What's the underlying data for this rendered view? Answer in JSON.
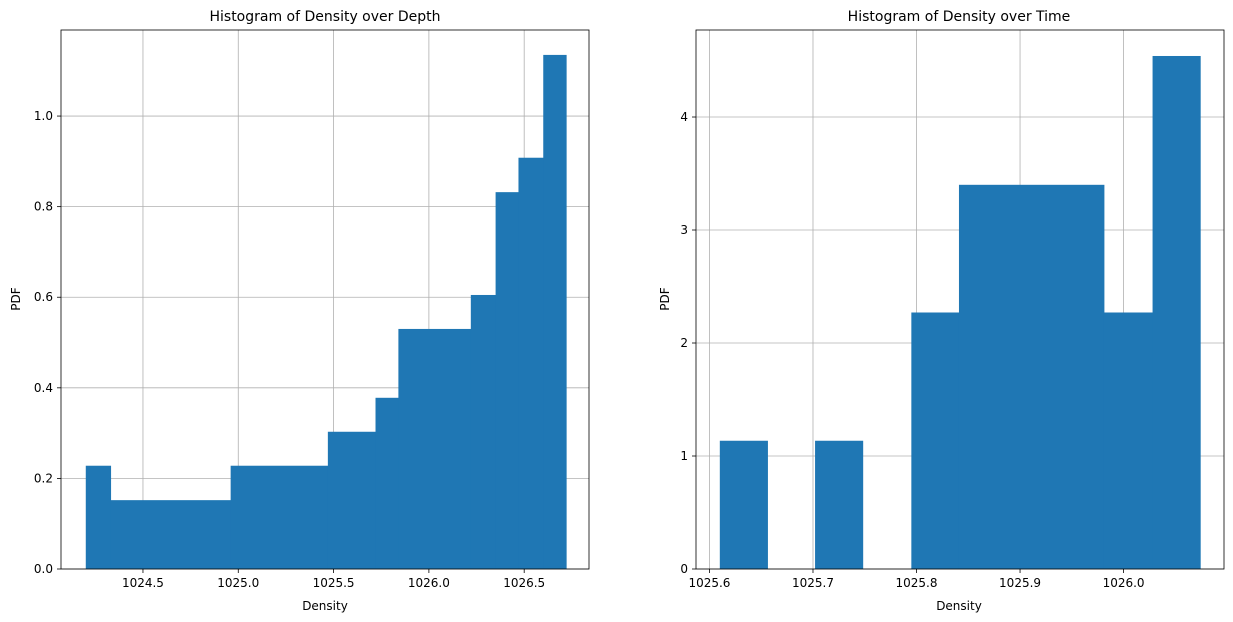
{
  "chart_data": [
    {
      "type": "bar",
      "title": "Histogram of Density over Depth",
      "xlabel": "Density",
      "ylabel": "PDF",
      "xlim": [
        1024.07,
        1026.84
      ],
      "ylim": [
        0,
        1.19
      ],
      "xticks": [
        1024.5,
        1025.0,
        1025.5,
        1026.0,
        1026.5
      ],
      "xtick_labels": [
        "1024.5",
        "1025.0",
        "1025.5",
        "1026.0",
        "1026.5"
      ],
      "yticks": [
        0.0,
        0.2,
        0.4,
        0.6,
        0.8,
        1.0
      ],
      "ytick_labels": [
        "0.0",
        "0.2",
        "0.4",
        "0.6",
        "0.8",
        "1.0"
      ],
      "grid": true,
      "bins": [
        {
          "x0": 1024.2,
          "x1": 1024.33,
          "value": 0.228
        },
        {
          "x0": 1024.33,
          "x1": 1024.96,
          "value": 0.152
        },
        {
          "x0": 1024.96,
          "x1": 1025.47,
          "value": 0.228
        },
        {
          "x0": 1025.47,
          "x1": 1025.72,
          "value": 0.303
        },
        {
          "x0": 1025.72,
          "x1": 1025.84,
          "value": 0.378
        },
        {
          "x0": 1025.84,
          "x1": 1026.22,
          "value": 0.53
        },
        {
          "x0": 1026.22,
          "x1": 1026.35,
          "value": 0.605
        },
        {
          "x0": 1026.35,
          "x1": 1026.47,
          "value": 0.832
        },
        {
          "x0": 1026.47,
          "x1": 1026.6,
          "value": 0.908
        },
        {
          "x0": 1026.6,
          "x1": 1026.72,
          "value": 1.135
        }
      ]
    },
    {
      "type": "bar",
      "title": "Histogram of Density over Time",
      "xlabel": "Density",
      "ylabel": "PDF",
      "xlim": [
        1025.587,
        1026.097
      ],
      "ylim": [
        0,
        4.77
      ],
      "xticks": [
        1025.6,
        1025.7,
        1025.8,
        1025.9,
        1026.0
      ],
      "xtick_labels": [
        "1025.6",
        "1025.7",
        "1025.8",
        "1025.9",
        "1026.0"
      ],
      "yticks": [
        0,
        1,
        2,
        3,
        4
      ],
      "ytick_labels": [
        "0",
        "1",
        "2",
        "3",
        "4"
      ],
      "grid": true,
      "bins": [
        {
          "x0": 1025.61,
          "x1": 1025.656,
          "value": 1.135
        },
        {
          "x0": 1025.702,
          "x1": 1025.748,
          "value": 1.135
        },
        {
          "x0": 1025.795,
          "x1": 1025.841,
          "value": 2.27
        },
        {
          "x0": 1025.841,
          "x1": 1025.981,
          "value": 3.4
        },
        {
          "x0": 1025.981,
          "x1": 1026.028,
          "value": 2.27
        },
        {
          "x0": 1026.028,
          "x1": 1026.074,
          "value": 4.54
        }
      ]
    }
  ]
}
